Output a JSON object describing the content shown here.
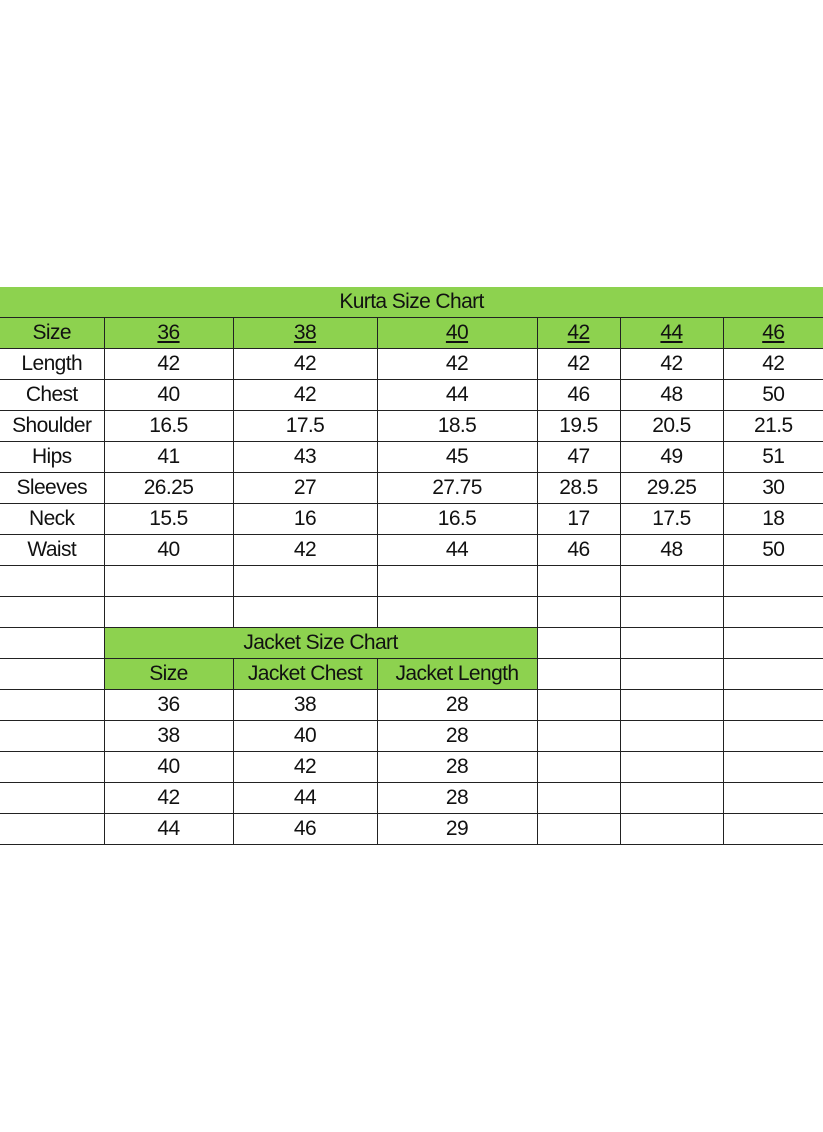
{
  "kurta": {
    "title": "Kurta Size Chart",
    "header_label": "Size",
    "sizes": [
      "36",
      "38",
      "40",
      "42",
      "44",
      "46"
    ],
    "rows": [
      {
        "label": "Length",
        "values": [
          "42",
          "42",
          "42",
          "42",
          "42",
          "42"
        ]
      },
      {
        "label": "Chest",
        "values": [
          "40",
          "42",
          "44",
          "46",
          "48",
          "50"
        ]
      },
      {
        "label": "Shoulder",
        "values": [
          "16.5",
          "17.5",
          "18.5",
          "19.5",
          "20.5",
          "21.5"
        ]
      },
      {
        "label": "Hips",
        "values": [
          "41",
          "43",
          "45",
          "47",
          "49",
          "51"
        ]
      },
      {
        "label": "Sleeves",
        "values": [
          "26.25",
          "27",
          "27.75",
          "28.5",
          "29.25",
          "30"
        ]
      },
      {
        "label": "Neck",
        "values": [
          "15.5",
          "16",
          "16.5",
          "17",
          "17.5",
          "18"
        ]
      },
      {
        "label": "Waist",
        "values": [
          "40",
          "42",
          "44",
          "46",
          "48",
          "50"
        ]
      }
    ]
  },
  "jacket": {
    "title": "Jacket Size Chart",
    "headers": [
      "Size",
      "Jacket Chest",
      "Jacket Length"
    ],
    "rows": [
      [
        "36",
        "38",
        "28"
      ],
      [
        "38",
        "40",
        "28"
      ],
      [
        "40",
        "42",
        "28"
      ],
      [
        "42",
        "44",
        "28"
      ],
      [
        "44",
        "46",
        "29"
      ]
    ]
  },
  "colors": {
    "header_green": "#8dd24f",
    "grid": "#222222"
  }
}
